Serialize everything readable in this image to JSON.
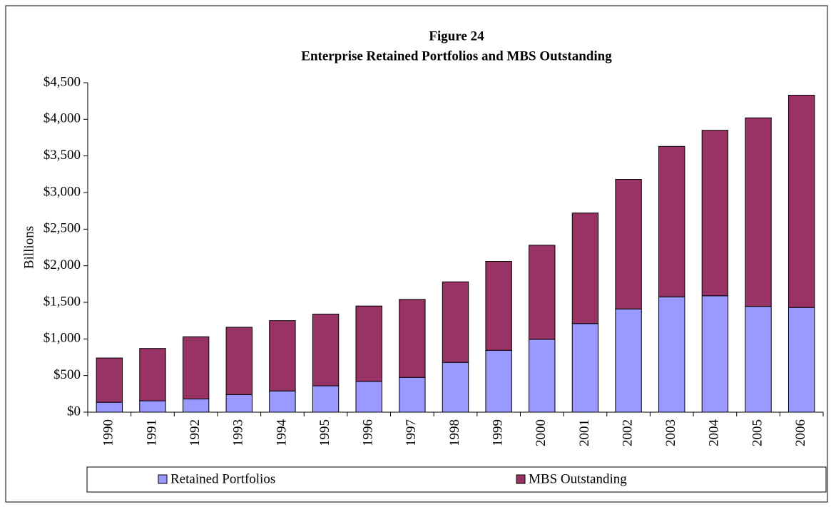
{
  "chart_data": {
    "type": "stacked_bar",
    "title": "Figure 24",
    "subtitle": "Enterprise Retained Portfolios and MBS Outstanding",
    "ylabel": "Billions",
    "categories": [
      "1990",
      "1991",
      "1992",
      "1993",
      "1994",
      "1995",
      "1996",
      "1997",
      "1998",
      "1999",
      "2000",
      "2001",
      "2002",
      "2003",
      "2004",
      "2005",
      "2006"
    ],
    "series": [
      {
        "name": "Retained Portfolios",
        "color": "#9999ff",
        "values": [
          135,
          155,
          180,
          240,
          290,
          360,
          420,
          475,
          680,
          845,
          995,
          1210,
          1410,
          1575,
          1590,
          1445,
          1430
        ]
      },
      {
        "name": "MBS Outstanding",
        "color": "#993366",
        "values": [
          605,
          715,
          850,
          920,
          960,
          980,
          1030,
          1065,
          1100,
          1215,
          1285,
          1510,
          1770,
          2055,
          2260,
          2575,
          2900
        ]
      }
    ],
    "ylim": [
      0,
      4500
    ],
    "yticks": [
      {
        "value": 0,
        "label": "$0"
      },
      {
        "value": 500,
        "label": "$500"
      },
      {
        "value": 1000,
        "label": "$1,000"
      },
      {
        "value": 1500,
        "label": "$1,500"
      },
      {
        "value": 2000,
        "label": "$2,000"
      },
      {
        "value": 2500,
        "label": "$2,500"
      },
      {
        "value": 3000,
        "label": "$3,000"
      },
      {
        "value": 3500,
        "label": "$3,500"
      },
      {
        "value": 4000,
        "label": "$4,000"
      },
      {
        "value": 4500,
        "label": "$4,500"
      }
    ],
    "grid": false,
    "legend": "bottom"
  }
}
